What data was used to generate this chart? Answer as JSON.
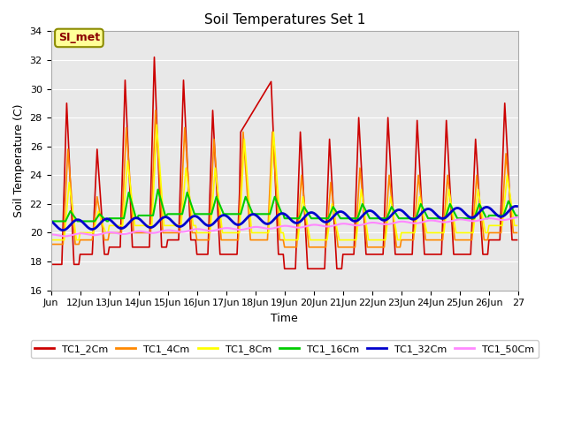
{
  "title": "Soil Temperatures Set 1",
  "xlabel": "Time",
  "ylabel": "Soil Temperature (C)",
  "ylim": [
    16,
    34
  ],
  "xlim": [
    0,
    384
  ],
  "yticks": [
    16,
    18,
    20,
    22,
    24,
    26,
    28,
    30,
    32,
    34
  ],
  "xtick_labels": [
    "Jun",
    "12Jun",
    "13Jun",
    "14Jun",
    "15Jun",
    "16Jun",
    "17Jun",
    "18Jun",
    "19Jun",
    "20Jun",
    "21Jun",
    "22Jun",
    "23Jun",
    "24Jun",
    "25Jun",
    "26Jun",
    "27"
  ],
  "series_colors": [
    "#cc0000",
    "#ff8800",
    "#ffff00",
    "#00cc00",
    "#0000cc",
    "#ff88ff"
  ],
  "series_names": [
    "TC1_2Cm",
    "TC1_4Cm",
    "TC1_8Cm",
    "TC1_16Cm",
    "TC1_32Cm",
    "TC1_50Cm"
  ],
  "bg_color": "#e8e8e8",
  "annotation_text": "SI_met",
  "linewidths": [
    1.2,
    1.2,
    1.2,
    1.5,
    2.0,
    1.5
  ]
}
